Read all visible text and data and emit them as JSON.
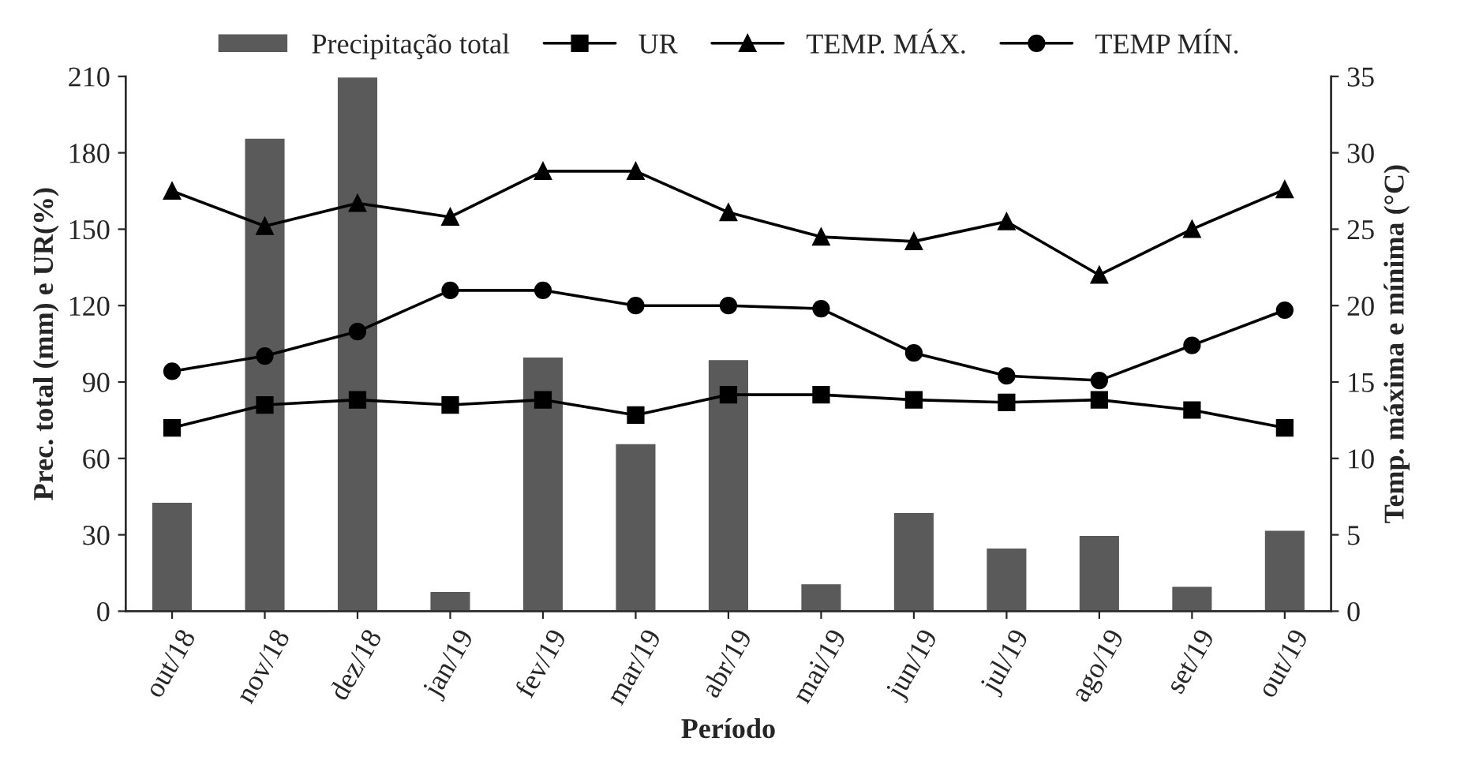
{
  "chart_data": {
    "type": "bar",
    "xlabel": "Período",
    "ylabel": "Prec. total (mm) e UR(%)",
    "y2label": "Temp. máxima e mínima (°C)",
    "categories": [
      "out/18",
      "nov/18",
      "dez/18",
      "jan/19",
      "fev/19",
      "mar/19",
      "abr/19",
      "mai/19",
      "jun/19",
      "jul/19",
      "ago/19",
      "set/19",
      "out/19"
    ],
    "series": [
      {
        "name": "Precipitação total",
        "color": "#5a5a5a",
        "values": [
          43,
          186,
          210,
          8,
          100,
          66,
          99,
          11,
          39,
          25,
          30,
          10,
          32
        ]
      },
      {
        "name": "UR",
        "type": "line",
        "color": "#000000",
        "marker": "square",
        "values": [
          72,
          81,
          83,
          81,
          83,
          77,
          85,
          85,
          83,
          82,
          83,
          79,
          72
        ]
      },
      {
        "name": "TEMP. MÁX.",
        "type": "line",
        "color": "#000000",
        "marker": "triangle",
        "axis": "y2",
        "values": [
          27.5,
          25.2,
          26.7,
          25.8,
          28.8,
          28.8,
          26.1,
          24.5,
          24.2,
          25.5,
          22.0,
          25.0,
          27.6
        ]
      },
      {
        "name": "TEMP MÍN.",
        "type": "line",
        "color": "#000000",
        "marker": "circle",
        "axis": "y2",
        "values": [
          15.7,
          16.7,
          18.3,
          21.0,
          21.0,
          20.0,
          20.0,
          19.8,
          16.9,
          15.4,
          15.1,
          17.4,
          19.7
        ]
      }
    ],
    "ylim": [
      0,
      210
    ],
    "yticks": [
      0,
      30,
      60,
      90,
      120,
      150,
      180,
      210
    ],
    "y2lim": [
      0,
      35
    ],
    "y2ticks": [
      0,
      5,
      10,
      15,
      20,
      25,
      30,
      35
    ],
    "legend": "top",
    "grid": false,
    "line_style": "solid"
  }
}
